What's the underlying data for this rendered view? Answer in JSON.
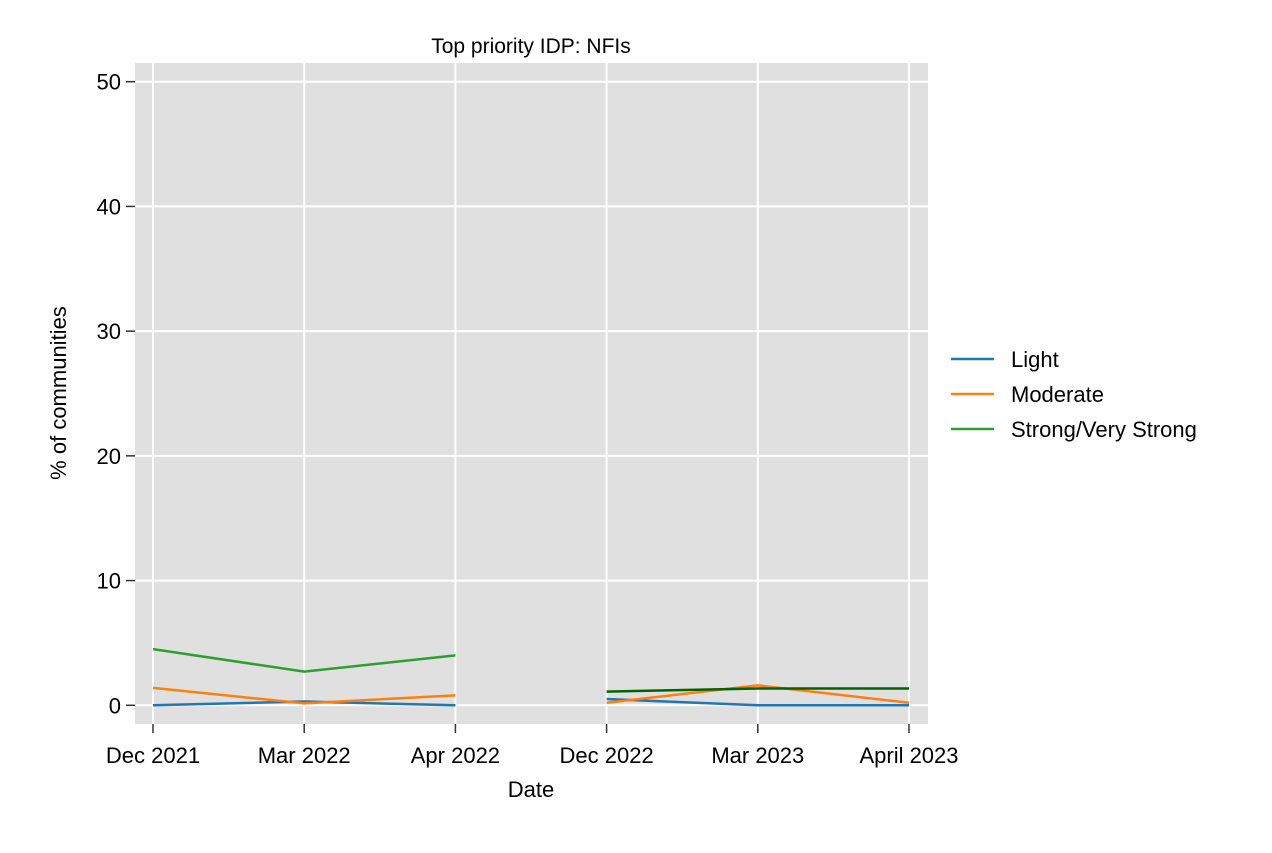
{
  "chart_data": {
    "type": "line",
    "title": "Top priority IDP: NFIs",
    "xlabel": "Date",
    "ylabel": "% of communities",
    "categories": [
      "Dec 2021",
      "Mar 2022",
      "Apr 2022",
      "Dec 2022",
      "Mar 2023",
      "April 2023"
    ],
    "ylim": [
      -1.5,
      51.5
    ],
    "yticks": [
      0,
      10,
      20,
      30,
      40,
      50
    ],
    "grid": true,
    "legend_position": "right",
    "background_color": "#e0e0e0",
    "series": [
      {
        "name": "Light",
        "color": "#1f77b4",
        "segments": [
          {
            "x": [
              "Dec 2021",
              "Mar 2022",
              "Apr 2022"
            ],
            "y": [
              0.0,
              0.3,
              0.0
            ]
          },
          {
            "x": [
              "Dec 2022",
              "Mar 2023",
              "April 2023"
            ],
            "y": [
              0.5,
              0.0,
              0.0
            ]
          }
        ]
      },
      {
        "name": "Moderate",
        "color": "#ff7f0e",
        "segments": [
          {
            "x": [
              "Dec 2021",
              "Mar 2022",
              "Apr 2022"
            ],
            "y": [
              1.4,
              0.15,
              0.8
            ]
          },
          {
            "x": [
              "Dec 2022",
              "Mar 2023",
              "April 2023"
            ],
            "y": [
              0.2,
              1.6,
              0.2
            ]
          }
        ]
      },
      {
        "name": "Strong/Very Strong",
        "color": "#2ca02c",
        "segments": [
          {
            "x": [
              "Dec 2021",
              "Mar 2022",
              "Apr 2022"
            ],
            "y": [
              4.5,
              2.7,
              4.0
            ]
          },
          {
            "x": [
              "Dec 2022",
              "Mar 2023",
              "April 2023"
            ],
            "y": [
              1.1,
              1.35,
              1.35
            ],
            "color": "#006400"
          }
        ]
      }
    ]
  }
}
